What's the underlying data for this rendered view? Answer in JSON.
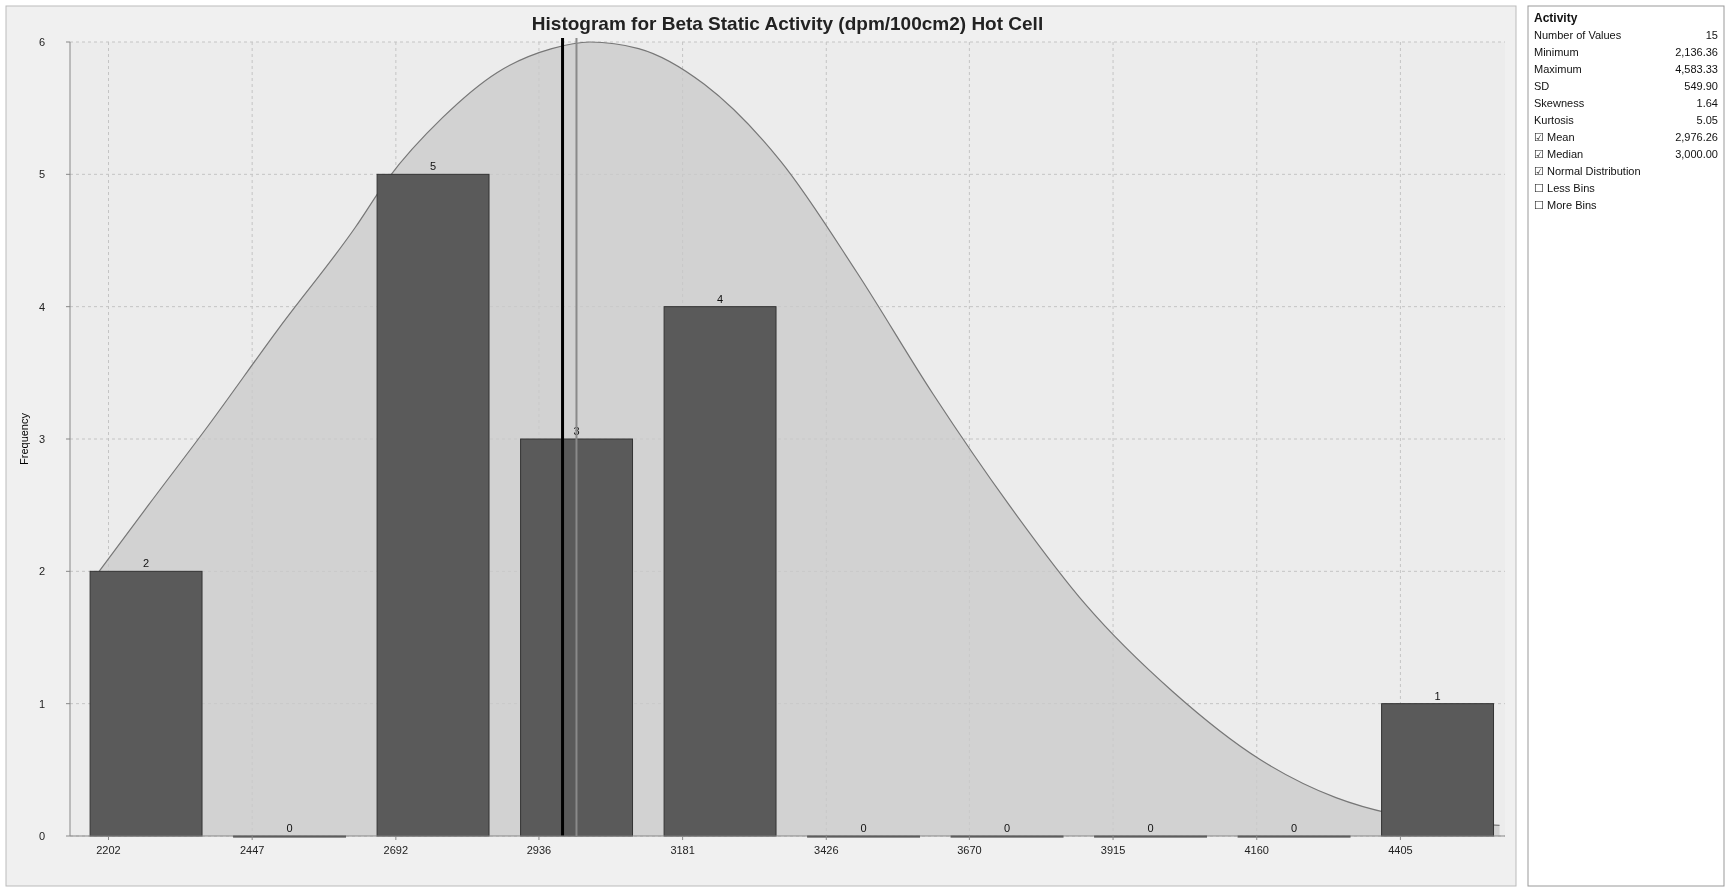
{
  "chart_data": {
    "type": "histogram",
    "title": "Histogram for Beta Static Activity (dpm/100cm2) Hot Cell",
    "ylabel": "Frequency",
    "bins": [
      2136.36,
      2381.06,
      2625.75,
      2870.45,
      3115.15,
      3359.85,
      3604.54,
      3849.24,
      4093.94,
      4338.63,
      4583.33
    ],
    "values": [
      2,
      0,
      5,
      3,
      4,
      0,
      0,
      0,
      0,
      1
    ],
    "color": "#5a5a5a",
    "value_labels": [
      "2",
      "0",
      "5",
      "3",
      "4",
      "0",
      "0",
      "0",
      "0",
      "1"
    ],
    "series": [
      {
        "type": "area",
        "color": "#c9c9c9",
        "x": [
          2186,
          2270,
          2372,
          2493,
          2623,
          2679,
          2772,
          2865,
          2958,
          3023,
          3106,
          3218,
          3348,
          3478,
          3608,
          3738,
          3868,
          4017,
          4165,
          4295,
          4388,
          4574
        ],
        "values": [
          2.0,
          2.5,
          3.1,
          3.84,
          4.6,
          4.97,
          5.43,
          5.77,
          5.95,
          6.0,
          5.95,
          5.68,
          5.1,
          4.26,
          3.34,
          2.5,
          1.75,
          1.09,
          0.58,
          0.29,
          0.17,
          0.08
        ]
      }
    ],
    "ref_lines": [
      {
        "axis": "x",
        "value": 2976.26,
        "color": "#000000"
      },
      {
        "axis": "x",
        "value": 3000,
        "color": "#8a8a8a"
      }
    ],
    "xlim": [
      2136.36,
      4583.33
    ],
    "xticks": [
      2202,
      2447,
      2692,
      2936,
      3181,
      3426,
      3670,
      3915,
      4160,
      4405
    ],
    "ylim": [
      0,
      6
    ],
    "yticks": [
      0,
      1,
      2,
      3,
      4,
      5,
      6
    ],
    "grid": true,
    "annotations": [
      "Activity",
      "Number of Values\t15",
      "Minimum\t2,136.36",
      "Maximum\t4,583.33",
      "SD\t549.90",
      "Skewness\t1.64",
      "Kurtosis\t5.05",
      "☑ Mean\t2,976.26",
      "☑ Median\t3,000.00",
      "☑ Normal Distribution",
      "☐ Less Bins",
      "☐ More Bins"
    ]
  }
}
